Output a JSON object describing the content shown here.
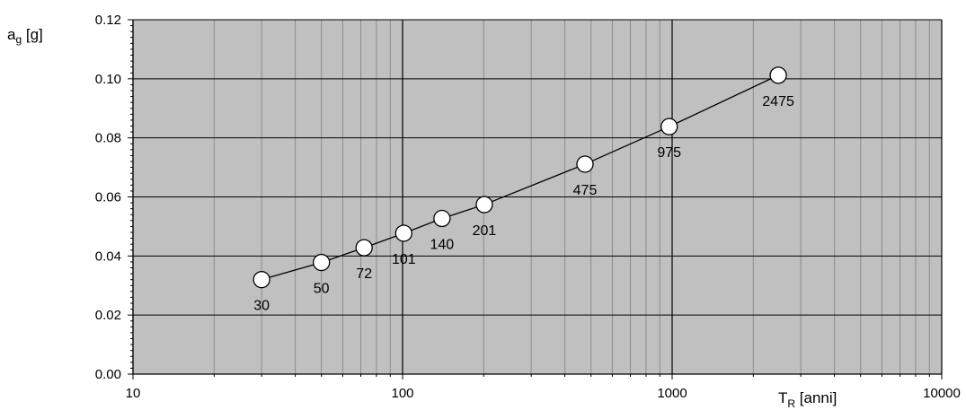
{
  "chart_data": {
    "type": "scatter",
    "x_scale": "log",
    "y_scale": "linear",
    "xlim": [
      10,
      10000
    ],
    "ylim": [
      0,
      0.12
    ],
    "grid": true,
    "colors": {
      "plot_background": "#c0c0c0",
      "major_grid": "#000000",
      "minor_grid": "#8c8c8c",
      "line": "#000000",
      "marker_fill": "#ffffff",
      "marker_stroke": "#000000"
    },
    "x_ticks": [
      "10",
      "100",
      "1000",
      "10000"
    ],
    "y_ticks": [
      "0.00",
      "0.02",
      "0.04",
      "0.06",
      "0.08",
      "0.10",
      "0.12"
    ],
    "ylabel": {
      "main": "a",
      "sub": "g",
      "rest": " [g]"
    },
    "xlabel": {
      "main": "T",
      "sub": "R",
      "rest": " [anni]"
    },
    "series": [
      {
        "x": [
          30,
          50,
          72,
          101,
          140,
          201,
          475,
          975,
          2475
        ],
        "y": [
          0.032,
          0.0378,
          0.0428,
          0.0477,
          0.0527,
          0.0574,
          0.0711,
          0.0838,
          0.1012
        ],
        "point_labels": [
          "30",
          "50",
          "72",
          "101",
          "140",
          "201",
          "475",
          "975",
          "2475"
        ]
      }
    ]
  }
}
